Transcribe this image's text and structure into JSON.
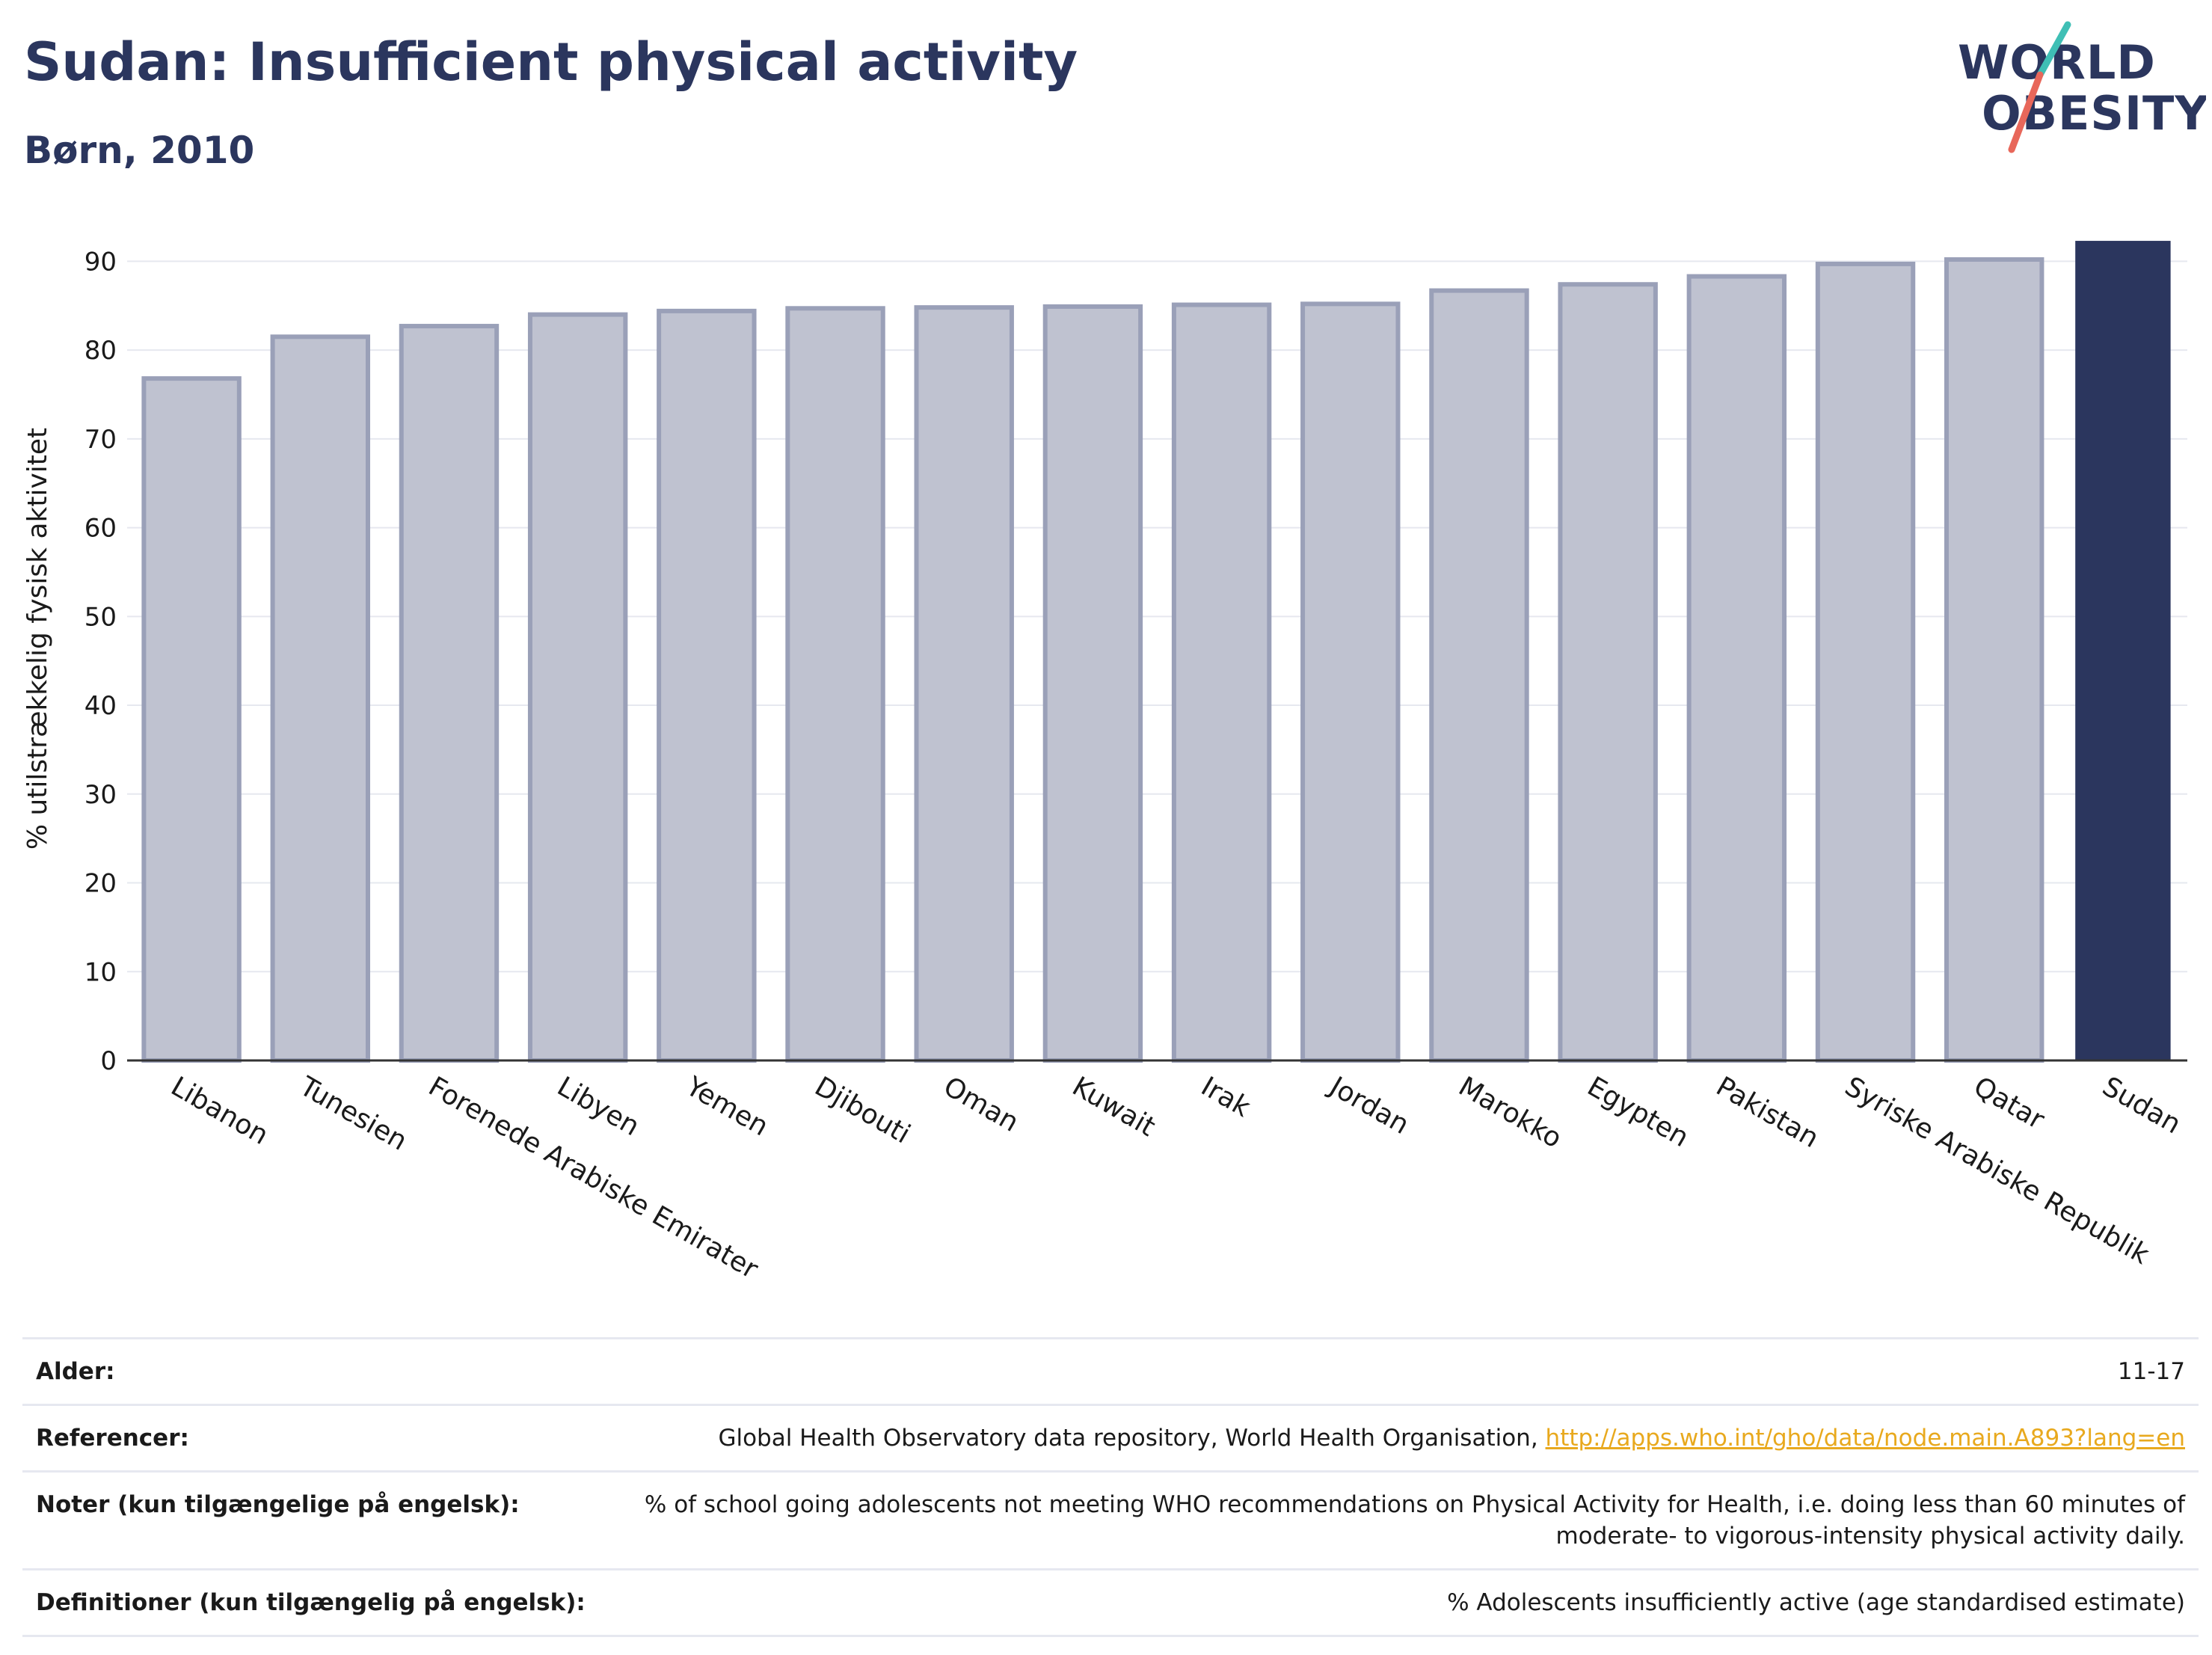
{
  "header": {
    "title": "Sudan: Insufficient physical activity",
    "subtitle": "Børn, 2010"
  },
  "logo": {
    "line1": "WORLD",
    "line2": "OBESITY"
  },
  "colors": {
    "highlight_bar": "#2b365e",
    "other_bar_fill": "#bfc2d0",
    "other_bar_stroke": "#9aa0b8",
    "title": "#2b365e",
    "logo_teal": "#3fbfb5",
    "logo_coral": "#e8675a",
    "link": "#e8a91e"
  },
  "chart_data": {
    "type": "bar",
    "ylabel": "% utilstrækkelig fysisk aktivitet",
    "ylim": [
      0,
      95
    ],
    "yticks": [
      0,
      10,
      20,
      30,
      40,
      50,
      60,
      70,
      80,
      90
    ],
    "grid": true,
    "categories": [
      "Libanon",
      "Tunesien",
      "Forenede Arabiske Emirater",
      "Libyen",
      "Yemen",
      "Djibouti",
      "Oman",
      "Kuwait",
      "Irak",
      "Jordan",
      "Marokko",
      "Egypten",
      "Pakistan",
      "Syriske Arabiske Republik",
      "Qatar",
      "Sudan"
    ],
    "values": [
      76.8,
      81.5,
      82.7,
      84.0,
      84.4,
      84.7,
      84.8,
      84.9,
      85.1,
      85.2,
      86.7,
      87.4,
      88.3,
      89.7,
      90.2,
      92.3
    ],
    "highlight": "Sudan"
  },
  "info": {
    "rows": [
      {
        "key": "Alder:",
        "value": "11-17"
      },
      {
        "key": "Referencer:",
        "value": "Global Health Observatory data repository, World Health Organisation, ",
        "link": "http://apps.who.int/gho/data/node.main.A893?lang=en"
      },
      {
        "key": "Noter (kun tilgængelige på engelsk):",
        "value": "% of school going adolescents not meeting WHO recommendations on Physical Activity for Health, i.e. doing less than 60 minutes of moderate- to vigorous-intensity physical activity daily."
      },
      {
        "key": "Definitioner (kun tilgængelig på engelsk):",
        "value": "% Adolescents insufficiently active (age standardised estimate)"
      }
    ]
  }
}
